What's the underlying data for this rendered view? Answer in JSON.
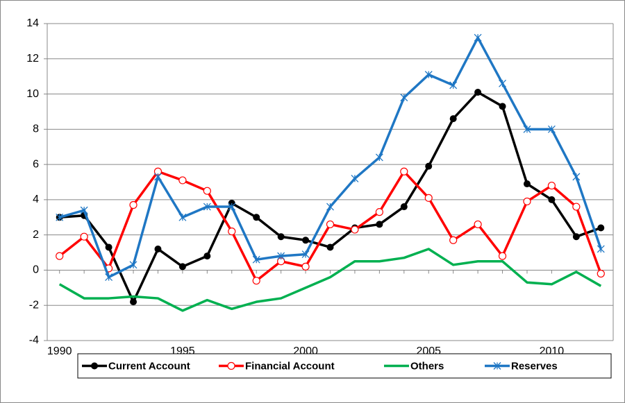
{
  "chart_data": {
    "type": "line",
    "x": [
      1990,
      1991,
      1992,
      1993,
      1994,
      1995,
      1996,
      1997,
      1998,
      1999,
      2000,
      2001,
      2002,
      2003,
      2004,
      2005,
      2006,
      2007,
      2008,
      2009,
      2010,
      2011,
      2012
    ],
    "xlim": [
      1989.5,
      2012.5
    ],
    "xticks": [
      1990,
      1995,
      2000,
      2005,
      2010
    ],
    "ylim": [
      -4,
      14
    ],
    "yticks": [
      -4,
      -2,
      0,
      2,
      4,
      6,
      8,
      10,
      12,
      14
    ],
    "grid": true,
    "legend": "bottom",
    "series": [
      {
        "name": "Current Account",
        "color": "#000000",
        "marker": "filled-circle",
        "values": [
          3.0,
          3.1,
          1.3,
          -1.8,
          1.2,
          0.2,
          0.8,
          3.8,
          3.0,
          1.9,
          1.7,
          1.3,
          2.4,
          2.6,
          3.6,
          5.9,
          8.6,
          10.1,
          9.3,
          4.9,
          4.0,
          1.9,
          2.4
        ]
      },
      {
        "name": "Financial Account",
        "color": "#ff0000",
        "marker": "open-circle",
        "values": [
          0.8,
          1.9,
          0.1,
          3.7,
          5.6,
          5.1,
          4.5,
          2.2,
          -0.6,
          0.5,
          0.2,
          2.6,
          2.3,
          3.3,
          5.6,
          4.1,
          1.7,
          2.6,
          0.8,
          3.9,
          4.8,
          3.6,
          -0.2
        ]
      },
      {
        "name": "Others",
        "color": "#00b050",
        "marker": "none",
        "values": [
          -0.8,
          -1.6,
          -1.6,
          -1.5,
          -1.6,
          -2.3,
          -1.7,
          -2.2,
          -1.8,
          -1.6,
          -1.0,
          -0.4,
          0.5,
          0.5,
          0.7,
          1.2,
          0.3,
          0.5,
          0.5,
          -0.7,
          -0.8,
          -0.1,
          -0.9
        ]
      },
      {
        "name": "Reserves",
        "color": "#1f77c4",
        "marker": "asterisk",
        "values": [
          3.0,
          3.4,
          -0.4,
          0.3,
          5.3,
          3.0,
          3.6,
          3.6,
          0.6,
          0.8,
          0.9,
          3.6,
          5.2,
          6.4,
          9.8,
          11.1,
          10.5,
          13.2,
          10.6,
          8.0,
          8.0,
          5.3,
          1.2
        ]
      }
    ]
  }
}
